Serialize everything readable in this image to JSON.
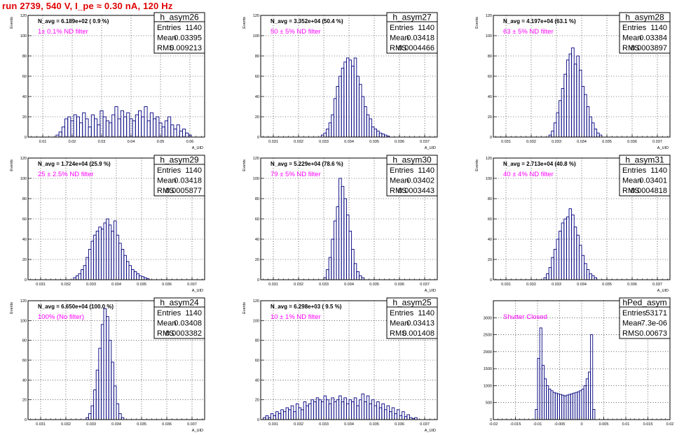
{
  "run_title": "run 2739,   540 V, I_pe ≈ 0.30 nA, 120 Hz",
  "colors": {
    "title": "#e00000",
    "histogram": "#000080",
    "annotation": "#ff00ff",
    "frame": "#000000"
  },
  "chart_data": [
    {
      "type": "bar",
      "title": "h_asym26",
      "ylabel": "Events",
      "xlabel": "A_UID",
      "grid": true,
      "stats": {
        "entries_label": "Entries",
        "entries": "1140",
        "mean_label": "Mean",
        "mean": "0.03395",
        "rms_label": "RMS",
        "rms": "0.009213"
      },
      "n_avg": "N_avg = 6.189e+02 ( 0.9 %)",
      "filter_note": "1± 0.1% ND filter",
      "xlim": [
        0.005,
        0.065
      ],
      "ylim": [
        0,
        120
      ],
      "x_ticks": [
        0.01,
        0.02,
        0.03,
        0.04,
        0.05,
        0.06
      ],
      "x_tick_labels": [
        "0.01",
        "0.02",
        "0.03",
        "0.04",
        "0.05",
        "0.06"
      ],
      "y_ticks": [
        0,
        20,
        40,
        60,
        80,
        100,
        120
      ],
      "bin_start": 0.0145,
      "bin_width": 0.001,
      "values": [
        2,
        5,
        10,
        18,
        20,
        16,
        22,
        20,
        14,
        24,
        18,
        10,
        22,
        18,
        12,
        26,
        20,
        16,
        14,
        22,
        30,
        18,
        26,
        20,
        24,
        18,
        16,
        22,
        26,
        20,
        30,
        16,
        24,
        18,
        20,
        14,
        10,
        16,
        20,
        12,
        8,
        12,
        6,
        8,
        4,
        2
      ]
    },
    {
      "type": "bar",
      "title": "h_asym27",
      "ylabel": "Events",
      "xlabel": "A_UID",
      "grid": true,
      "stats": {
        "entries_label": "Entries",
        "entries": "1140",
        "mean_label": "Mean",
        "mean": "0.03418",
        "rms_label": "RMS",
        "rms": "0.0004466"
      },
      "n_avg": "N_avg = 3.352e+04 (50.4 %)",
      "filter_note": "50 ± 5% ND filter",
      "xlim": [
        0.0305,
        0.0375
      ],
      "ylim": [
        0,
        120
      ],
      "x_ticks": [
        0.031,
        0.032,
        0.033,
        0.034,
        0.035,
        0.036,
        0.037
      ],
      "x_tick_labels": [
        "0.031",
        "0.032",
        "0.033",
        "0.034",
        "0.035",
        "0.036",
        "0.037"
      ],
      "y_ticks": [
        0,
        20,
        40,
        60,
        80,
        100,
        120
      ],
      "bin_start": 0.0329,
      "bin_width": 0.0001,
      "values": [
        2,
        4,
        8,
        14,
        22,
        38,
        50,
        60,
        68,
        74,
        78,
        76,
        70,
        78,
        60,
        52,
        40,
        30,
        22,
        18,
        10,
        8,
        6,
        4,
        3,
        2,
        1
      ]
    },
    {
      "type": "bar",
      "title": "h_asym28",
      "ylabel": "Events",
      "xlabel": "A_UID",
      "grid": true,
      "stats": {
        "entries_label": "Entries",
        "entries": "1140",
        "mean_label": "Mean",
        "mean": "0.03384",
        "rms_label": "RMS",
        "rms": "0.0003897"
      },
      "n_avg": "N_avg = 4.197e+04 (63.1 %)",
      "filter_note": "63 ± 5% ND filter",
      "xlim": [
        0.0305,
        0.0375
      ],
      "ylim": [
        0,
        120
      ],
      "x_ticks": [
        0.031,
        0.032,
        0.033,
        0.034,
        0.035,
        0.036,
        0.037
      ],
      "x_tick_labels": [
        "0.031",
        "0.032",
        "0.033",
        "0.034",
        "0.035",
        "0.036",
        "0.037"
      ],
      "y_ticks": [
        0,
        20,
        40,
        60,
        80,
        100,
        120
      ],
      "bin_start": 0.0327,
      "bin_width": 0.0001,
      "values": [
        2,
        6,
        14,
        24,
        36,
        48,
        62,
        76,
        82,
        88,
        72,
        80,
        66,
        50,
        42,
        30,
        20,
        14,
        8,
        4,
        2
      ]
    },
    {
      "type": "bar",
      "title": "h_asym29",
      "ylabel": "Events",
      "xlabel": "A_UID",
      "grid": true,
      "stats": {
        "entries_label": "Entries",
        "entries": "1140",
        "mean_label": "Mean",
        "mean": "0.03418",
        "rms_label": "RMS",
        "rms": "0.0005877"
      },
      "n_avg": "N_avg = 1.724e+04 (25.9 %)",
      "filter_note": "25 ± 2.5% ND filter",
      "xlim": [
        0.0305,
        0.0375
      ],
      "ylim": [
        0,
        120
      ],
      "x_ticks": [
        0.031,
        0.032,
        0.033,
        0.034,
        0.035,
        0.036,
        0.037
      ],
      "x_tick_labels": [
        "0.031",
        "0.032",
        "0.033",
        "0.034",
        "0.035",
        "0.036",
        "0.037"
      ],
      "y_ticks": [
        0,
        20,
        40,
        60,
        80,
        100,
        120
      ],
      "bin_start": 0.0323,
      "bin_width": 0.0001,
      "values": [
        2,
        4,
        6,
        10,
        14,
        22,
        30,
        38,
        44,
        48,
        52,
        50,
        56,
        60,
        54,
        48,
        58,
        44,
        36,
        30,
        24,
        18,
        14,
        10,
        8,
        6,
        4,
        3,
        2,
        1
      ]
    },
    {
      "type": "bar",
      "title": "h_asym30",
      "ylabel": "Events",
      "xlabel": "A_UID",
      "grid": true,
      "stats": {
        "entries_label": "Entries",
        "entries": "1140",
        "mean_label": "Mean",
        "mean": "0.03402",
        "rms_label": "RMS",
        "rms": "0.0003443"
      },
      "n_avg": "N_avg = 5.229e+04 (78.6 %)",
      "filter_note": "79 ± 5% ND filter",
      "xlim": [
        0.0305,
        0.0375
      ],
      "ylim": [
        0,
        120
      ],
      "x_ticks": [
        0.031,
        0.032,
        0.033,
        0.034,
        0.035,
        0.036,
        0.037
      ],
      "x_tick_labels": [
        "0.031",
        "0.032",
        "0.033",
        "0.034",
        "0.035",
        "0.036",
        "0.037"
      ],
      "y_ticks": [
        0,
        20,
        40,
        60,
        80,
        100,
        120
      ],
      "bin_start": 0.033,
      "bin_width": 0.0001,
      "values": [
        2,
        10,
        22,
        40,
        58,
        72,
        100,
        92,
        80,
        64,
        48,
        30,
        16,
        8,
        4,
        2
      ]
    },
    {
      "type": "bar",
      "title": "h_asym31",
      "ylabel": "Events",
      "xlabel": "A_UID",
      "grid": true,
      "stats": {
        "entries_label": "Entries",
        "entries": "1140",
        "mean_label": "Mean",
        "mean": "0.03401",
        "rms_label": "RMS",
        "rms": "0.0004818"
      },
      "n_avg": "N_avg = 2.713e+04 (40.8 %)",
      "filter_note": "40 ± 4% ND filter",
      "xlim": [
        0.0305,
        0.0375
      ],
      "ylim": [
        0,
        120
      ],
      "x_ticks": [
        0.031,
        0.032,
        0.033,
        0.034,
        0.035,
        0.036,
        0.037
      ],
      "x_tick_labels": [
        "0.031",
        "0.032",
        "0.033",
        "0.034",
        "0.035",
        "0.036",
        "0.037"
      ],
      "y_ticks": [
        0,
        20,
        40,
        60,
        80,
        100,
        120
      ],
      "bin_start": 0.0325,
      "bin_width": 0.0001,
      "values": [
        2,
        6,
        12,
        22,
        30,
        40,
        48,
        56,
        60,
        62,
        70,
        64,
        52,
        44,
        34,
        24,
        16,
        10,
        6,
        4,
        2
      ]
    },
    {
      "type": "bar",
      "title": "h_asym24",
      "ylabel": "Events",
      "xlabel": "A_UID",
      "grid": true,
      "stats": {
        "entries_label": "Entries",
        "entries": "1140",
        "mean_label": "Mean",
        "mean": "0.03408",
        "rms_label": "RMS",
        "rms": "0.0003382"
      },
      "n_avg": "N_avg = 6.650e+04 (100.0 %)",
      "filter_note": "100% (No filter)",
      "xlim": [
        0.0305,
        0.0375
      ],
      "ylim": [
        0,
        120
      ],
      "x_ticks": [
        0.031,
        0.032,
        0.033,
        0.034,
        0.035,
        0.036,
        0.037
      ],
      "x_tick_labels": [
        "0.031",
        "0.032",
        "0.033",
        "0.034",
        "0.035",
        "0.036",
        "0.037"
      ],
      "y_ticks": [
        0,
        20,
        40,
        60,
        80,
        100,
        120
      ],
      "bin_start": 0.0328,
      "bin_width": 0.0001,
      "values": [
        2,
        6,
        14,
        30,
        50,
        72,
        96,
        112,
        104,
        80,
        58,
        34,
        16,
        6,
        2
      ]
    },
    {
      "type": "bar",
      "title": "h_asym25",
      "ylabel": "Events",
      "xlabel": "A_UID",
      "grid": true,
      "stats": {
        "entries_label": "Entries",
        "entries": "1140",
        "mean_label": "Mean",
        "mean": "0.03413",
        "rms_label": "RMS",
        "rms": "0.001408"
      },
      "n_avg": "N_avg = 6.298e+03 ( 9.5 %)",
      "filter_note": "10 ± 1% ND filter",
      "xlim": [
        0.0305,
        0.0375
      ],
      "ylim": [
        0,
        120
      ],
      "x_ticks": [
        0.031,
        0.032,
        0.033,
        0.034,
        0.035,
        0.036,
        0.037
      ],
      "x_tick_labels": [
        "0.031",
        "0.032",
        "0.033",
        "0.034",
        "0.035",
        "0.036",
        "0.037"
      ],
      "y_ticks": [
        0,
        20,
        40,
        60,
        80,
        100,
        120
      ],
      "bin_start": 0.0306,
      "bin_width": 0.0001,
      "values": [
        2,
        4,
        2,
        6,
        4,
        8,
        6,
        10,
        8,
        12,
        10,
        14,
        8,
        16,
        12,
        10,
        18,
        14,
        16,
        20,
        18,
        22,
        20,
        18,
        24,
        20,
        16,
        22,
        18,
        20,
        24,
        18,
        22,
        16,
        20,
        18,
        22,
        14,
        20,
        26,
        18,
        24,
        16,
        20,
        14,
        18,
        12,
        16,
        10,
        14,
        8,
        12,
        6,
        10,
        4,
        8,
        3,
        5,
        2,
        1,
        2
      ]
    },
    {
      "type": "bar",
      "title": "hPed_asym",
      "ylabel": "",
      "xlabel": "",
      "grid": true,
      "stats": {
        "entries_label": "Entries",
        "entries": "53171",
        "mean_label": "Mean",
        "mean": "-7.3e-06",
        "rms_label": "RMS",
        "rms": "0.00673"
      },
      "n_avg": "",
      "filter_note": "Shutter Closed",
      "xlim": [
        -0.02,
        0.02
      ],
      "ylim": [
        0,
        3500
      ],
      "x_ticks": [
        -0.02,
        -0.015,
        -0.01,
        -0.005,
        0,
        0.005,
        0.01,
        0.015,
        0.02
      ],
      "x_tick_labels": [
        "-0.02",
        "-0.015",
        "-0.01",
        "-0.005",
        "0",
        "0.005",
        "0.01",
        "0.015",
        "0.02"
      ],
      "y_ticks": [
        0,
        500,
        1000,
        1500,
        2000,
        2500,
        3000
      ],
      "bin_start": -0.0105,
      "bin_width": 0.0005,
      "values": [
        300,
        1800,
        2700,
        1600,
        1200,
        1000,
        900,
        850,
        800,
        780,
        760,
        740,
        720,
        700,
        720,
        740,
        760,
        780,
        800,
        820,
        850,
        900,
        1000,
        1200,
        1400,
        2500,
        300
      ]
    }
  ]
}
